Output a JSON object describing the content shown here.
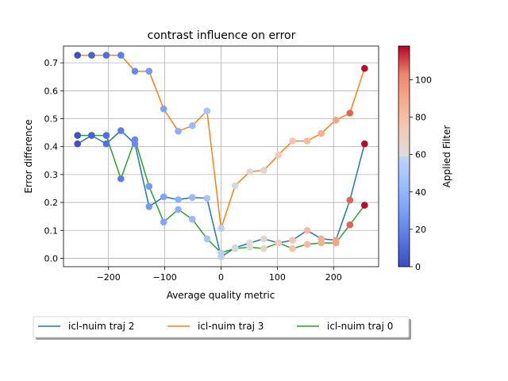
{
  "chart_data": {
    "type": "line",
    "title": "contrast influence on error",
    "xlabel": "Average quality metric",
    "ylabel": "Error difference",
    "xlim": [
      -280,
      280
    ],
    "ylim": [
      -0.03,
      0.76
    ],
    "xticks": [
      -200,
      -100,
      0,
      100,
      200
    ],
    "yticks": [
      0.0,
      0.1,
      0.2,
      0.3,
      0.4,
      0.5,
      0.6,
      0.7
    ],
    "grid": true,
    "legend_position": "below",
    "colorbar": {
      "label": "Applied Filter",
      "range": [
        0,
        118
      ],
      "ticks": [
        0,
        20,
        40,
        60,
        80,
        100
      ],
      "colormap": "coolwarm"
    },
    "filters": [
      0,
      5,
      10,
      15,
      20,
      25,
      30,
      35,
      40,
      45,
      50,
      55,
      60,
      65,
      70,
      75,
      80,
      85,
      90,
      95,
      100,
      105,
      110,
      115
    ],
    "series": [
      {
        "name": "icl-nuim traj 2",
        "color": "#1f77b4",
        "x": [
          -255,
          -230,
          -204,
          -178,
          -153,
          -128,
          -102,
          -76,
          -51,
          -25,
          0,
          25,
          51,
          76,
          102,
          127,
          153,
          178,
          204,
          229,
          255
        ],
        "y": [
          0.41,
          0.44,
          0.41,
          0.457,
          0.41,
          0.185,
          0.22,
          0.21,
          0.218,
          0.215,
          0.005,
          0.038,
          0.055,
          0.07,
          0.055,
          0.065,
          0.1,
          0.07,
          0.065,
          0.208,
          0.41
        ],
        "f": [
          2,
          7,
          12,
          17,
          22,
          27,
          32,
          37,
          42,
          47,
          52,
          57,
          62,
          67,
          72,
          77,
          82,
          87,
          92,
          107,
          117
        ]
      },
      {
        "name": "icl-nuim traj 3",
        "color": "#ff7f0e",
        "x": [
          -255,
          -230,
          -204,
          -178,
          -153,
          -128,
          -102,
          -76,
          -51,
          -25,
          0,
          25,
          51,
          76,
          102,
          127,
          153,
          178,
          204,
          229,
          255
        ],
        "y": [
          0.727,
          0.727,
          0.727,
          0.727,
          0.67,
          0.67,
          0.535,
          0.455,
          0.475,
          0.528,
          0.107,
          0.26,
          0.31,
          0.315,
          0.37,
          0.42,
          0.42,
          0.447,
          0.495,
          0.52,
          0.68
        ],
        "f": [
          2,
          7,
          12,
          17,
          22,
          27,
          32,
          37,
          42,
          47,
          52,
          57,
          62,
          67,
          72,
          77,
          82,
          87,
          92,
          107,
          117
        ]
      },
      {
        "name": "icl-nuim traj 0",
        "color": "#2ca02c",
        "x": [
          -255,
          -230,
          -204,
          -178,
          -153,
          -128,
          -102,
          -76,
          -51,
          -25,
          0,
          25,
          51,
          76,
          102,
          127,
          153,
          178,
          204,
          229,
          255
        ],
        "y": [
          0.44,
          0.44,
          0.44,
          0.285,
          0.425,
          0.258,
          0.13,
          0.175,
          0.14,
          0.07,
          0.02,
          0.035,
          0.04,
          0.035,
          0.055,
          0.035,
          0.05,
          0.055,
          0.055,
          0.12,
          0.19
        ],
        "f": [
          2,
          7,
          12,
          17,
          22,
          27,
          32,
          37,
          42,
          47,
          52,
          57,
          62,
          67,
          72,
          77,
          82,
          87,
          92,
          107,
          117
        ]
      }
    ]
  }
}
